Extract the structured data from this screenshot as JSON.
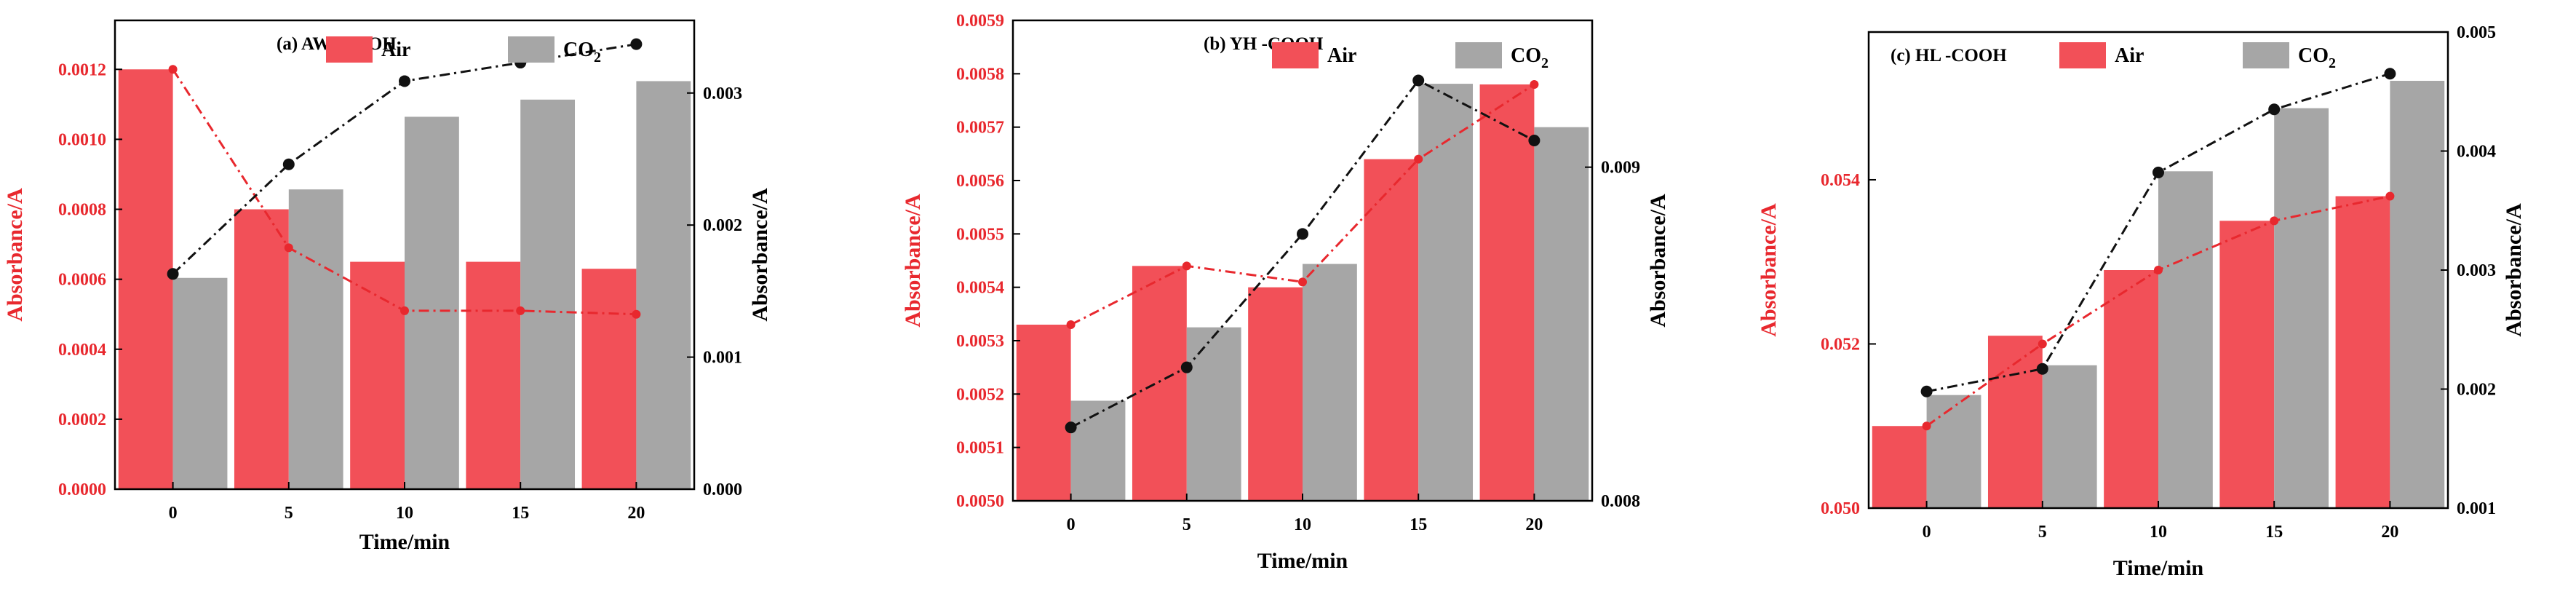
{
  "chart_data": [
    {
      "type": "bar",
      "title": "(a) AW  -COOH",
      "xlabel": "Time/min",
      "ylabel_left": "Absorbance/A",
      "ylabel_right": "Absorbance/A",
      "categories": [
        "0",
        "5",
        "10",
        "15",
        "20"
      ],
      "ylim_left": [
        0,
        0.00134
      ],
      "ylim_right": [
        0,
        0.00355
      ],
      "yticks_left": [
        "0.0000",
        "0.0002",
        "0.0004",
        "0.0006",
        "0.0008",
        "0.0010",
        "0.0012"
      ],
      "yticks_right": [
        "0.000",
        "0.001",
        "0.002",
        "0.003"
      ],
      "grid": false,
      "legend_position": "top-right",
      "series": [
        {
          "name": "Air",
          "axis": "left",
          "color": "#f25058",
          "values": [
            0.0012,
            0.0008,
            0.00065,
            0.00065,
            0.00063
          ]
        },
        {
          "name": "CO2",
          "subscript": "2",
          "axis": "right",
          "color": "#a6a6a6",
          "values": [
            0.0016,
            0.00227,
            0.00282,
            0.00295,
            0.00309
          ]
        }
      ],
      "lines": [
        {
          "series": "Air",
          "axis": "left",
          "color": "#e8282e",
          "values": [
            0.0012,
            0.00069,
            0.00051,
            0.00051,
            0.0005
          ]
        },
        {
          "series": "CO2",
          "axis": "right",
          "color": "#111111",
          "values": [
            0.00163,
            0.00246,
            0.00309,
            0.00323,
            0.00337
          ]
        }
      ]
    },
    {
      "type": "bar",
      "title": "(b) YH -COOH",
      "xlabel": "Time/min",
      "ylabel_left": "Absorbance/A",
      "ylabel_right": "Absorbance/A",
      "categories": [
        "0",
        "5",
        "10",
        "15",
        "20"
      ],
      "ylim_left": [
        0.005,
        0.0059
      ],
      "ylim_right": [
        0.008,
        0.00944
      ],
      "yticks_left": [
        "0.0050",
        "0.0051",
        "0.0052",
        "0.0053",
        "0.0054",
        "0.0055",
        "0.0056",
        "0.0057",
        "0.0058",
        "0.0059"
      ],
      "yticks_right": [
        "0.008",
        "0.009"
      ],
      "grid": false,
      "legend_position": "top-right",
      "series": [
        {
          "name": "Air",
          "axis": "left",
          "color": "#f25058",
          "values": [
            0.00533,
            0.00544,
            0.0054,
            0.00564,
            0.00578
          ]
        },
        {
          "name": "CO2",
          "subscript": "2",
          "axis": "right",
          "color": "#a6a6a6",
          "values": [
            0.0083,
            0.00852,
            0.00871,
            0.00925,
            0.00912
          ]
        }
      ],
      "lines": [
        {
          "series": "Air",
          "axis": "left",
          "color": "#e8282e",
          "values": [
            0.00533,
            0.00544,
            0.00541,
            0.00564,
            0.00578
          ]
        },
        {
          "series": "CO2",
          "axis": "right",
          "color": "#111111",
          "values": [
            0.00822,
            0.0084,
            0.0088,
            0.00926,
            0.00908
          ]
        }
      ]
    },
    {
      "type": "bar",
      "title": "(c) HL  -COOH",
      "xlabel": "Time/min",
      "ylabel_left": "Absorbance/A",
      "ylabel_right": "Absorbance/A",
      "categories": [
        "0",
        "5",
        "10",
        "15",
        "20"
      ],
      "ylim_left": [
        0.05,
        0.0558
      ],
      "ylim_right": [
        0.001,
        0.005
      ],
      "yticks_left": [
        "0.050",
        "0.052",
        "0.054"
      ],
      "yticks_right": [
        "0.001",
        "0.002",
        "0.003",
        "0.004",
        "0.005"
      ],
      "grid": false,
      "legend_position": "top-left",
      "series": [
        {
          "name": "Air",
          "axis": "left",
          "color": "#f25058",
          "values": [
            0.051,
            0.0521,
            0.0529,
            0.0535,
            0.0538
          ]
        },
        {
          "name": "CO2",
          "subscript": "2",
          "axis": "right",
          "color": "#a6a6a6",
          "values": [
            0.00195,
            0.0022,
            0.00383,
            0.00436,
            0.00459
          ]
        }
      ],
      "lines": [
        {
          "series": "Air",
          "axis": "left",
          "color": "#e8282e",
          "values": [
            0.051,
            0.052,
            0.0529,
            0.0535,
            0.0538
          ]
        },
        {
          "series": "CO2",
          "axis": "right",
          "color": "#111111",
          "values": [
            0.00198,
            0.00217,
            0.00382,
            0.00435,
            0.00465
          ]
        }
      ]
    }
  ]
}
